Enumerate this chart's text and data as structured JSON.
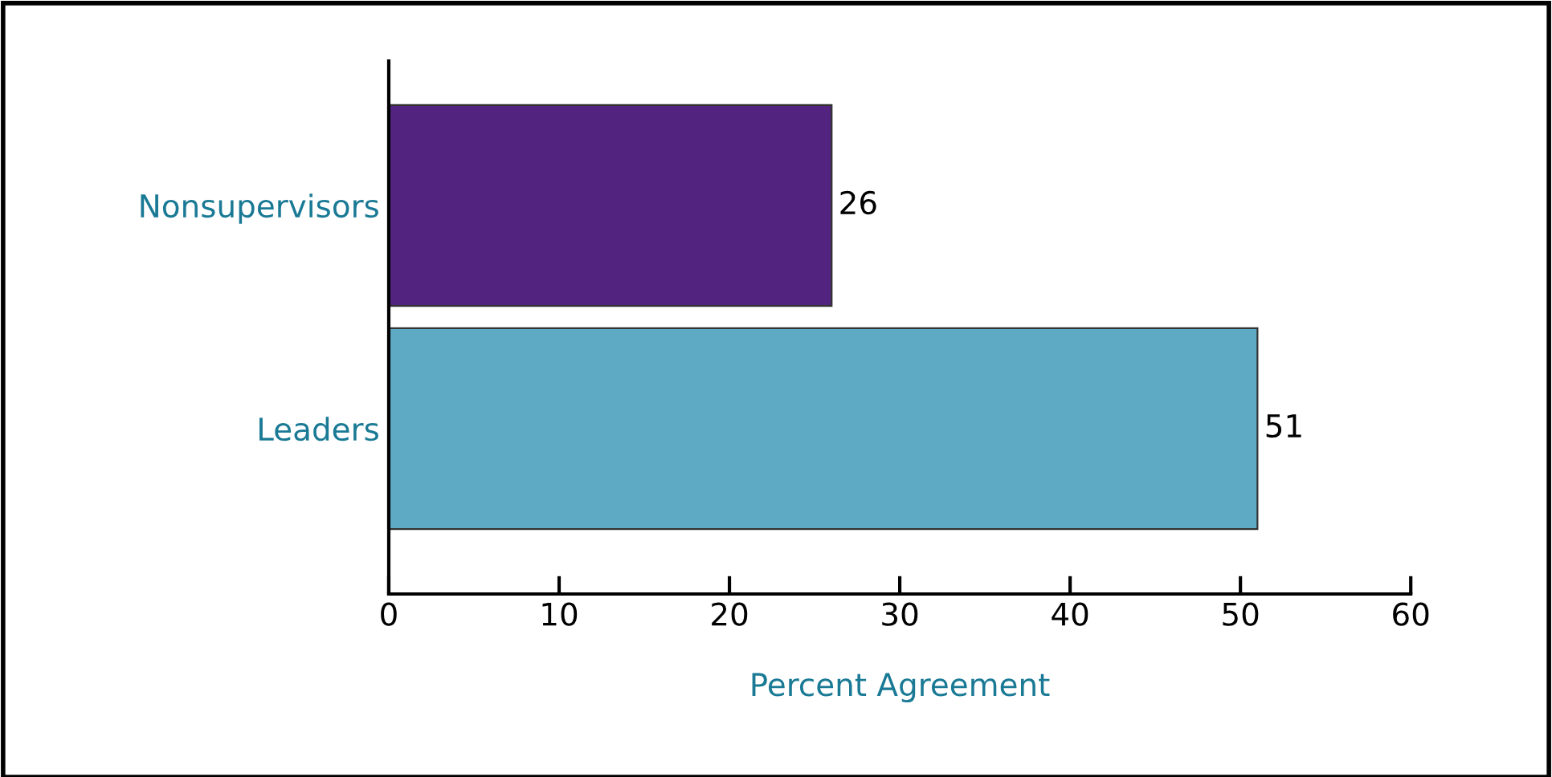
{
  "chart_data": {
    "type": "bar",
    "orientation": "horizontal",
    "categories": [
      "Nonsupervisors",
      "Leaders"
    ],
    "values": [
      26,
      51
    ],
    "colors": [
      "#52247f",
      "#5eaac4"
    ],
    "xlabel": "Percent Agreement",
    "xlim": [
      0,
      60
    ],
    "xticks": [
      0,
      10,
      20,
      30,
      40,
      50,
      60
    ],
    "data_labels": true,
    "grid": false,
    "legend": false
  }
}
